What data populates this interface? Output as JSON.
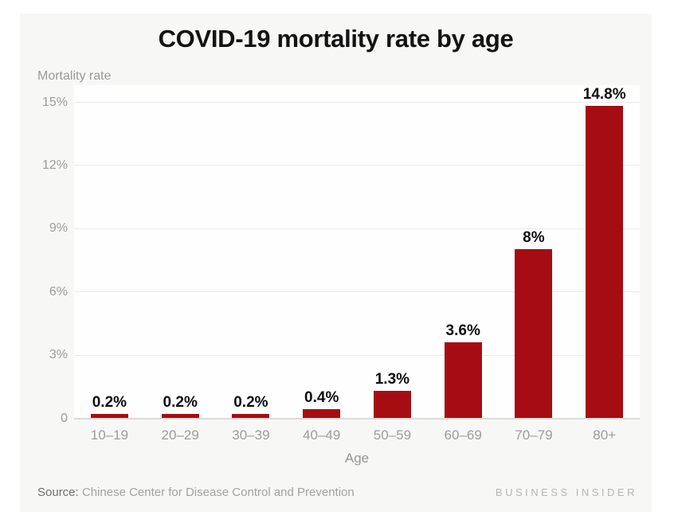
{
  "page": {
    "background": "#ffffff",
    "card_background": "#f7f7f6",
    "plot_background": "#fefefe"
  },
  "chart_data": {
    "type": "bar",
    "title": "COVID-19 mortality rate by age",
    "y_axis_title": "Mortality rate",
    "x_axis_title": "Age",
    "categories": [
      "10–19",
      "20–29",
      "30–39",
      "40–49",
      "50–59",
      "60–69",
      "70–79",
      "80+"
    ],
    "values": [
      0.2,
      0.2,
      0.2,
      0.4,
      1.3,
      3.6,
      8,
      14.8
    ],
    "value_labels": [
      "0.2%",
      "0.2%",
      "0.2%",
      "0.4%",
      "1.3%",
      "3.6%",
      "8%",
      "14.8%"
    ],
    "y_ticks": [
      0,
      3,
      6,
      9,
      12,
      15
    ],
    "y_tick_labels": [
      "0",
      "3%",
      "6%",
      "9%",
      "12%",
      "15%"
    ],
    "ylim": [
      0,
      15
    ],
    "grid": true,
    "legend": "none",
    "bar_color": "#a50d12",
    "value_label_color": "#0d0d0d",
    "axis_text_color": "#9d9c9a",
    "gridline_color": "#eceae8",
    "baseline_color": "#dcdad7"
  },
  "footer": {
    "source_label": "Source:",
    "source_text": "Chinese Center for Disease Control and Prevention",
    "publisher": "BUSINESS INSIDER"
  }
}
